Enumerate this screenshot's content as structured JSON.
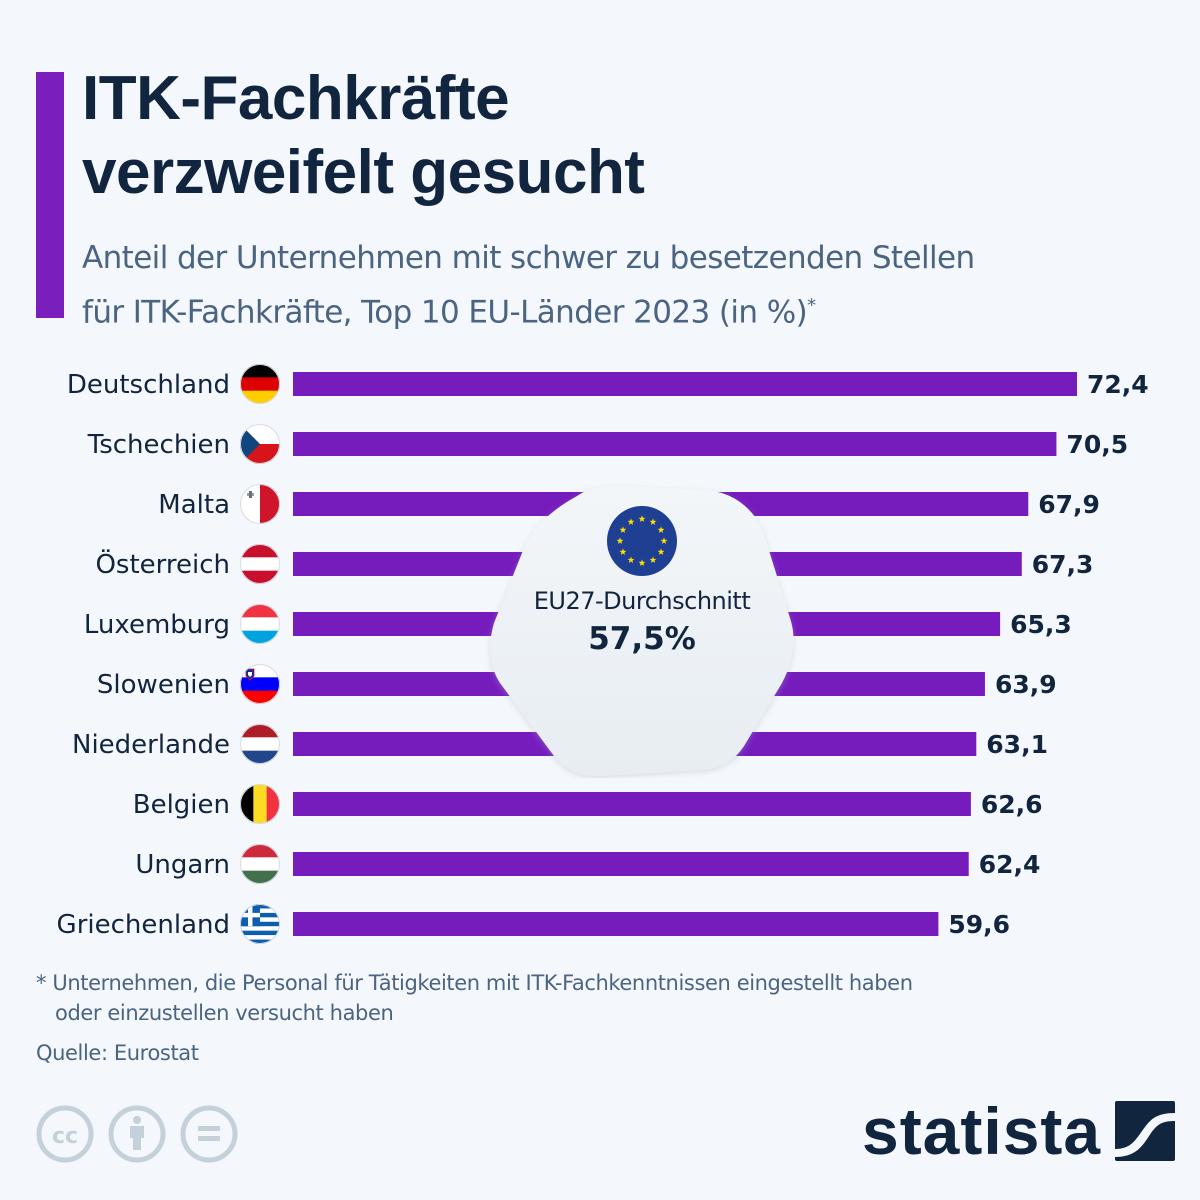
{
  "header": {
    "title_line1": "ITK-Fachkräfte",
    "title_line2": "verzweifelt gesucht",
    "subtitle_line1": "Anteil der Unternehmen mit schwer zu besetzenden Stellen",
    "subtitle_line2": "für ITK-Fachkräfte, Top 10 EU-Länder 2023 (in %)",
    "subtitle_marker": "*"
  },
  "colors": {
    "accent": "#7a1fbe",
    "bar": "#761cbd",
    "text_dark": "#12253f",
    "text_muted": "#4a6482",
    "background": "#f4f7fb",
    "icon_gray": "#c5d1da"
  },
  "callout": {
    "icon": "eu-flag-icon",
    "label": "EU27-Durchschnitt",
    "value": "57,5%"
  },
  "chart_data": {
    "type": "bar",
    "orientation": "horizontal",
    "title": "ITK-Fachkräfte verzweifelt gesucht",
    "subtitle": "Anteil der Unternehmen mit schwer zu besetzenden Stellen für ITK-Fachkräfte, Top 10 EU-Länder 2023 (in %)",
    "xlabel": "",
    "ylabel": "",
    "xlim": [
      0,
      72.4
    ],
    "grid": false,
    "legend": "none",
    "categories": [
      "Deutschland",
      "Tschechien",
      "Malta",
      "Österreich",
      "Luxemburg",
      "Slowenien",
      "Niederlande",
      "Belgien",
      "Ungarn",
      "Griechenland"
    ],
    "values": [
      72.4,
      70.5,
      67.9,
      67.3,
      65.3,
      63.9,
      63.1,
      62.6,
      62.4,
      59.6
    ],
    "value_labels": [
      "72,4",
      "70,5",
      "67,9",
      "67,3",
      "65,3",
      "63,9",
      "63,1",
      "62,6",
      "62,4",
      "59,6"
    ],
    "flags": [
      "germany-flag-icon",
      "czechia-flag-icon",
      "malta-flag-icon",
      "austria-flag-icon",
      "luxembourg-flag-icon",
      "slovenia-flag-icon",
      "netherlands-flag-icon",
      "belgium-flag-icon",
      "hungary-flag-icon",
      "greece-flag-icon"
    ],
    "annotations": [
      {
        "text": "EU27-Durchschnitt 57,5%",
        "value": 57.5
      }
    ]
  },
  "footer": {
    "footnote_marker": "*",
    "footnote_line1": "Unternehmen, die Personal für Tätigkeiten mit ITK-Fachkenntnissen eingestellt haben",
    "footnote_line2": "oder einzustellen versucht haben",
    "source": "Quelle: Eurostat",
    "license_icons": [
      "cc-icon",
      "attribution-icon",
      "no-derivatives-icon"
    ],
    "brand": "statista"
  }
}
